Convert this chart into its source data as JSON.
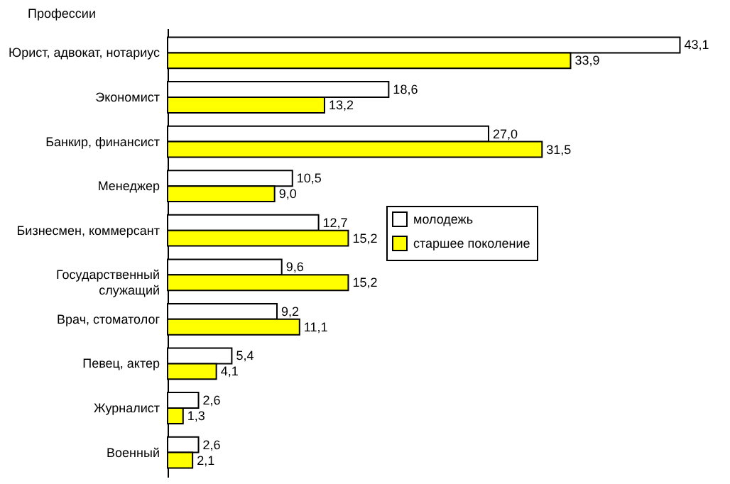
{
  "chart_data": {
    "type": "bar",
    "orientation": "horizontal",
    "ylabel": "Профессии",
    "categories": [
      "Юрист, адвокат, нотариус",
      "Экономист",
      "Банкир, финансист",
      "Менеджер",
      "Бизнесмен, коммерсант",
      "Государственный служащий",
      "Врач, стоматолог",
      "Певец, актер",
      "Журналист",
      "Военный"
    ],
    "series": [
      {
        "name": "молодежь",
        "color": "#ffffff",
        "values": [
          43.1,
          18.6,
          27.0,
          10.5,
          12.7,
          9.6,
          9.2,
          5.4,
          2.6,
          2.6
        ],
        "value_labels": [
          "43,1",
          "18,6",
          "27,0",
          "10,5",
          "12,7",
          "9,6",
          "9,2",
          "5,4",
          "2,6",
          "2,6"
        ]
      },
      {
        "name": "старшее поколение",
        "color": "#ffff00",
        "values": [
          33.9,
          13.2,
          31.5,
          9.0,
          15.2,
          15.2,
          11.1,
          4.1,
          1.3,
          2.1
        ],
        "value_labels": [
          "33,9",
          "13,2",
          "31,5",
          "9,0",
          "15,2",
          "15,2",
          "11,1",
          "4,1",
          "1,3",
          "2,1"
        ]
      }
    ],
    "legend": "right",
    "grid": false
  }
}
